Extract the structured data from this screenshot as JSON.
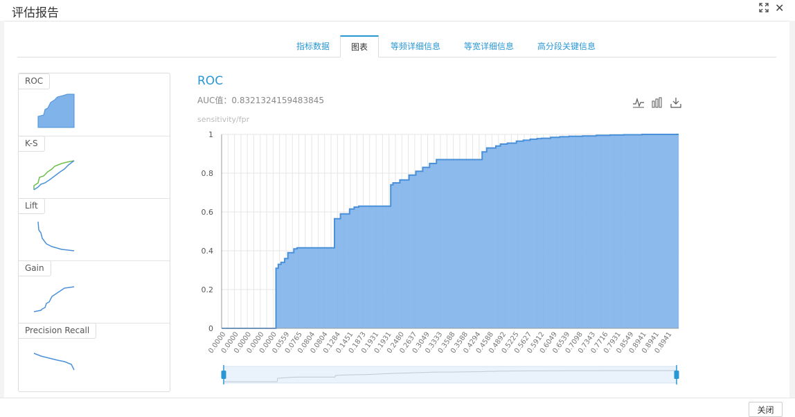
{
  "modal": {
    "title": "评估报告",
    "close_label": "关闭"
  },
  "tabs": [
    {
      "label": "指标数据",
      "active": false
    },
    {
      "label": "图表",
      "active": true
    },
    {
      "label": "等频详细信息",
      "active": false
    },
    {
      "label": "等宽详细信息",
      "active": false
    },
    {
      "label": "高分段关键信息",
      "active": false
    }
  ],
  "thumbnails": [
    {
      "label": "ROC"
    },
    {
      "label": "K-S"
    },
    {
      "label": "Lift"
    },
    {
      "label": "Gain"
    },
    {
      "label": "Precision Recall"
    }
  ],
  "chart": {
    "title": "ROC",
    "auc_text": "AUC值：0.8321324159483845",
    "toolbox": [
      "line-chart-icon",
      "bar-chart-icon",
      "download-icon"
    ],
    "accent_color": "#2a97d5",
    "fill_color": "#80b3ea"
  },
  "chart_data": {
    "type": "area",
    "title": "ROC",
    "ylabel": "sensitivity/fpr",
    "xlabel": "",
    "ylim": [
      0,
      1
    ],
    "yticks": [
      0,
      0.2,
      0.4,
      0.6,
      0.8,
      1
    ],
    "grid": true,
    "x_tick_labels": [
      "0.0000",
      "0.0000",
      "0.0000",
      "0.0000",
      "0.0000",
      "0.0559",
      "0.0765",
      "0.0804",
      "0.0804",
      "0.1284",
      "0.1451",
      "0.1873",
      "0.1931",
      "0.1931",
      "0.2480",
      "0.2637",
      "0.3049",
      "0.3333",
      "0.3588",
      "0.3588",
      "0.4294",
      "0.4588",
      "0.4892",
      "0.5225",
      "0.5627",
      "0.5912",
      "0.6049",
      "0.6539",
      "0.7098",
      "0.7343",
      "0.7716",
      "0.7931",
      "0.8549",
      "0.8941",
      "0.8941",
      "0.8941"
    ],
    "series": [
      {
        "x": [
          0,
          0.118,
          0.119,
          0.124,
          0.13,
          0.138,
          0.145,
          0.158,
          0.165,
          0.246,
          0.247,
          0.26,
          0.28,
          0.29,
          0.3,
          0.31,
          0.37,
          0.375,
          0.39,
          0.41,
          0.425,
          0.44,
          0.455,
          0.47,
          0.5,
          0.57,
          0.58,
          0.6,
          0.61,
          0.625,
          0.645,
          0.66,
          0.675,
          0.69,
          0.7,
          0.72,
          0.74,
          0.76,
          0.79,
          0.82,
          0.85,
          0.88,
          0.92,
          0.96,
          1.0
        ],
        "y": [
          0,
          0,
          0.31,
          0.33,
          0.34,
          0.36,
          0.39,
          0.41,
          0.415,
          0.415,
          0.565,
          0.59,
          0.615,
          0.625,
          0.63,
          0.63,
          0.74,
          0.75,
          0.765,
          0.79,
          0.81,
          0.83,
          0.85,
          0.87,
          0.87,
          0.91,
          0.93,
          0.94,
          0.95,
          0.955,
          0.965,
          0.97,
          0.975,
          0.978,
          0.98,
          0.985,
          0.988,
          0.99,
          0.992,
          0.995,
          0.997,
          0.998,
          1.0,
          1.0,
          1.0
        ]
      }
    ],
    "data_zoom": {
      "start": 0,
      "end": 100
    }
  }
}
